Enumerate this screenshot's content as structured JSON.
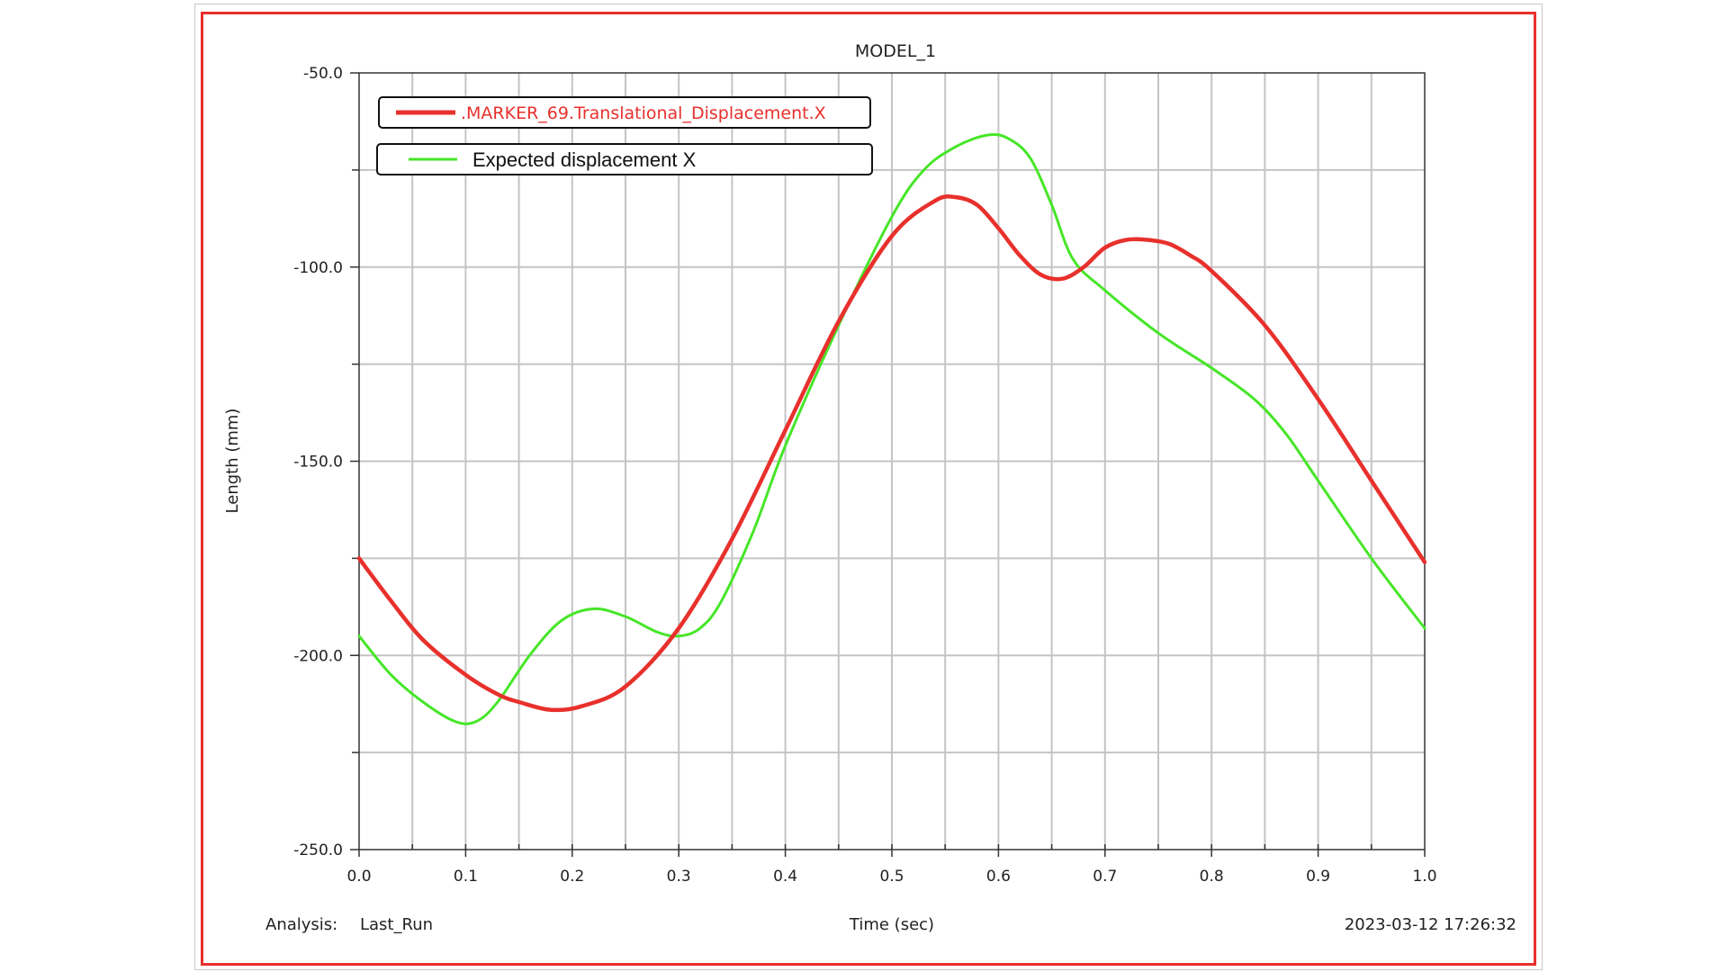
{
  "chart_data": {
    "type": "line",
    "title": "MODEL_1",
    "xlabel": "Time (sec)",
    "ylabel": "Length (mm)",
    "xlim": [
      0.0,
      1.0
    ],
    "ylim": [
      -250.0,
      -50.0
    ],
    "x_ticks": [
      "0.0",
      "0.1",
      "0.2",
      "0.3",
      "0.4",
      "0.5",
      "0.6",
      "0.7",
      "0.8",
      "0.9",
      "1.0"
    ],
    "y_ticks": [
      "-50.0",
      "-100.0",
      "-150.0",
      "-200.0",
      "-250.0"
    ],
    "y_tick_values": [
      -50,
      -100,
      -150,
      -200,
      -250
    ],
    "y_minor_ticks": [
      -75,
      -125,
      -175,
      -225
    ],
    "grid": true,
    "legend_placement": "top-left",
    "series": [
      {
        "name": ".MARKER_69.Translational_Displacement.X",
        "color": "#e8302c",
        "x": [
          0.0,
          0.03,
          0.06,
          0.1,
          0.13,
          0.15,
          0.18,
          0.21,
          0.25,
          0.3,
          0.35,
          0.4,
          0.45,
          0.5,
          0.54,
          0.56,
          0.58,
          0.6,
          0.62,
          0.64,
          0.66,
          0.68,
          0.7,
          0.72,
          0.74,
          0.76,
          0.78,
          0.8,
          0.85,
          0.9,
          0.95,
          1.0
        ],
        "y": [
          -175,
          -186,
          -196,
          -205,
          -210,
          -212,
          -214,
          -213,
          -208,
          -193,
          -170,
          -142,
          -114,
          -92,
          -83,
          -82,
          -84,
          -90,
          -97,
          -102,
          -103,
          -100,
          -95,
          -93,
          -93,
          -94,
          -97,
          -101,
          -115,
          -134,
          -155,
          -176
        ]
      },
      {
        "name": "Expected displacement X",
        "color": "#46e628",
        "x": [
          0.0,
          0.03,
          0.06,
          0.09,
          0.11,
          0.13,
          0.16,
          0.19,
          0.22,
          0.25,
          0.28,
          0.3,
          0.32,
          0.34,
          0.37,
          0.4,
          0.45,
          0.5,
          0.53,
          0.56,
          0.59,
          0.61,
          0.63,
          0.65,
          0.67,
          0.7,
          0.75,
          0.8,
          0.84,
          0.87,
          0.9,
          0.95,
          1.0
        ],
        "y": [
          -195,
          -205,
          -212,
          -217,
          -217,
          -212,
          -200,
          -191,
          -188,
          -190,
          -194,
          -195,
          -193,
          -186,
          -168,
          -146,
          -115,
          -87,
          -75,
          -69,
          -66,
          -67,
          -72,
          -84,
          -98,
          -106,
          -117,
          -126,
          -134,
          -143,
          -155,
          -175,
          -193
        ]
      }
    ]
  },
  "footer": {
    "analysis_label": "Analysis:",
    "analysis_value": "Last_Run",
    "timestamp": "2023-03-12 17:26:32"
  }
}
